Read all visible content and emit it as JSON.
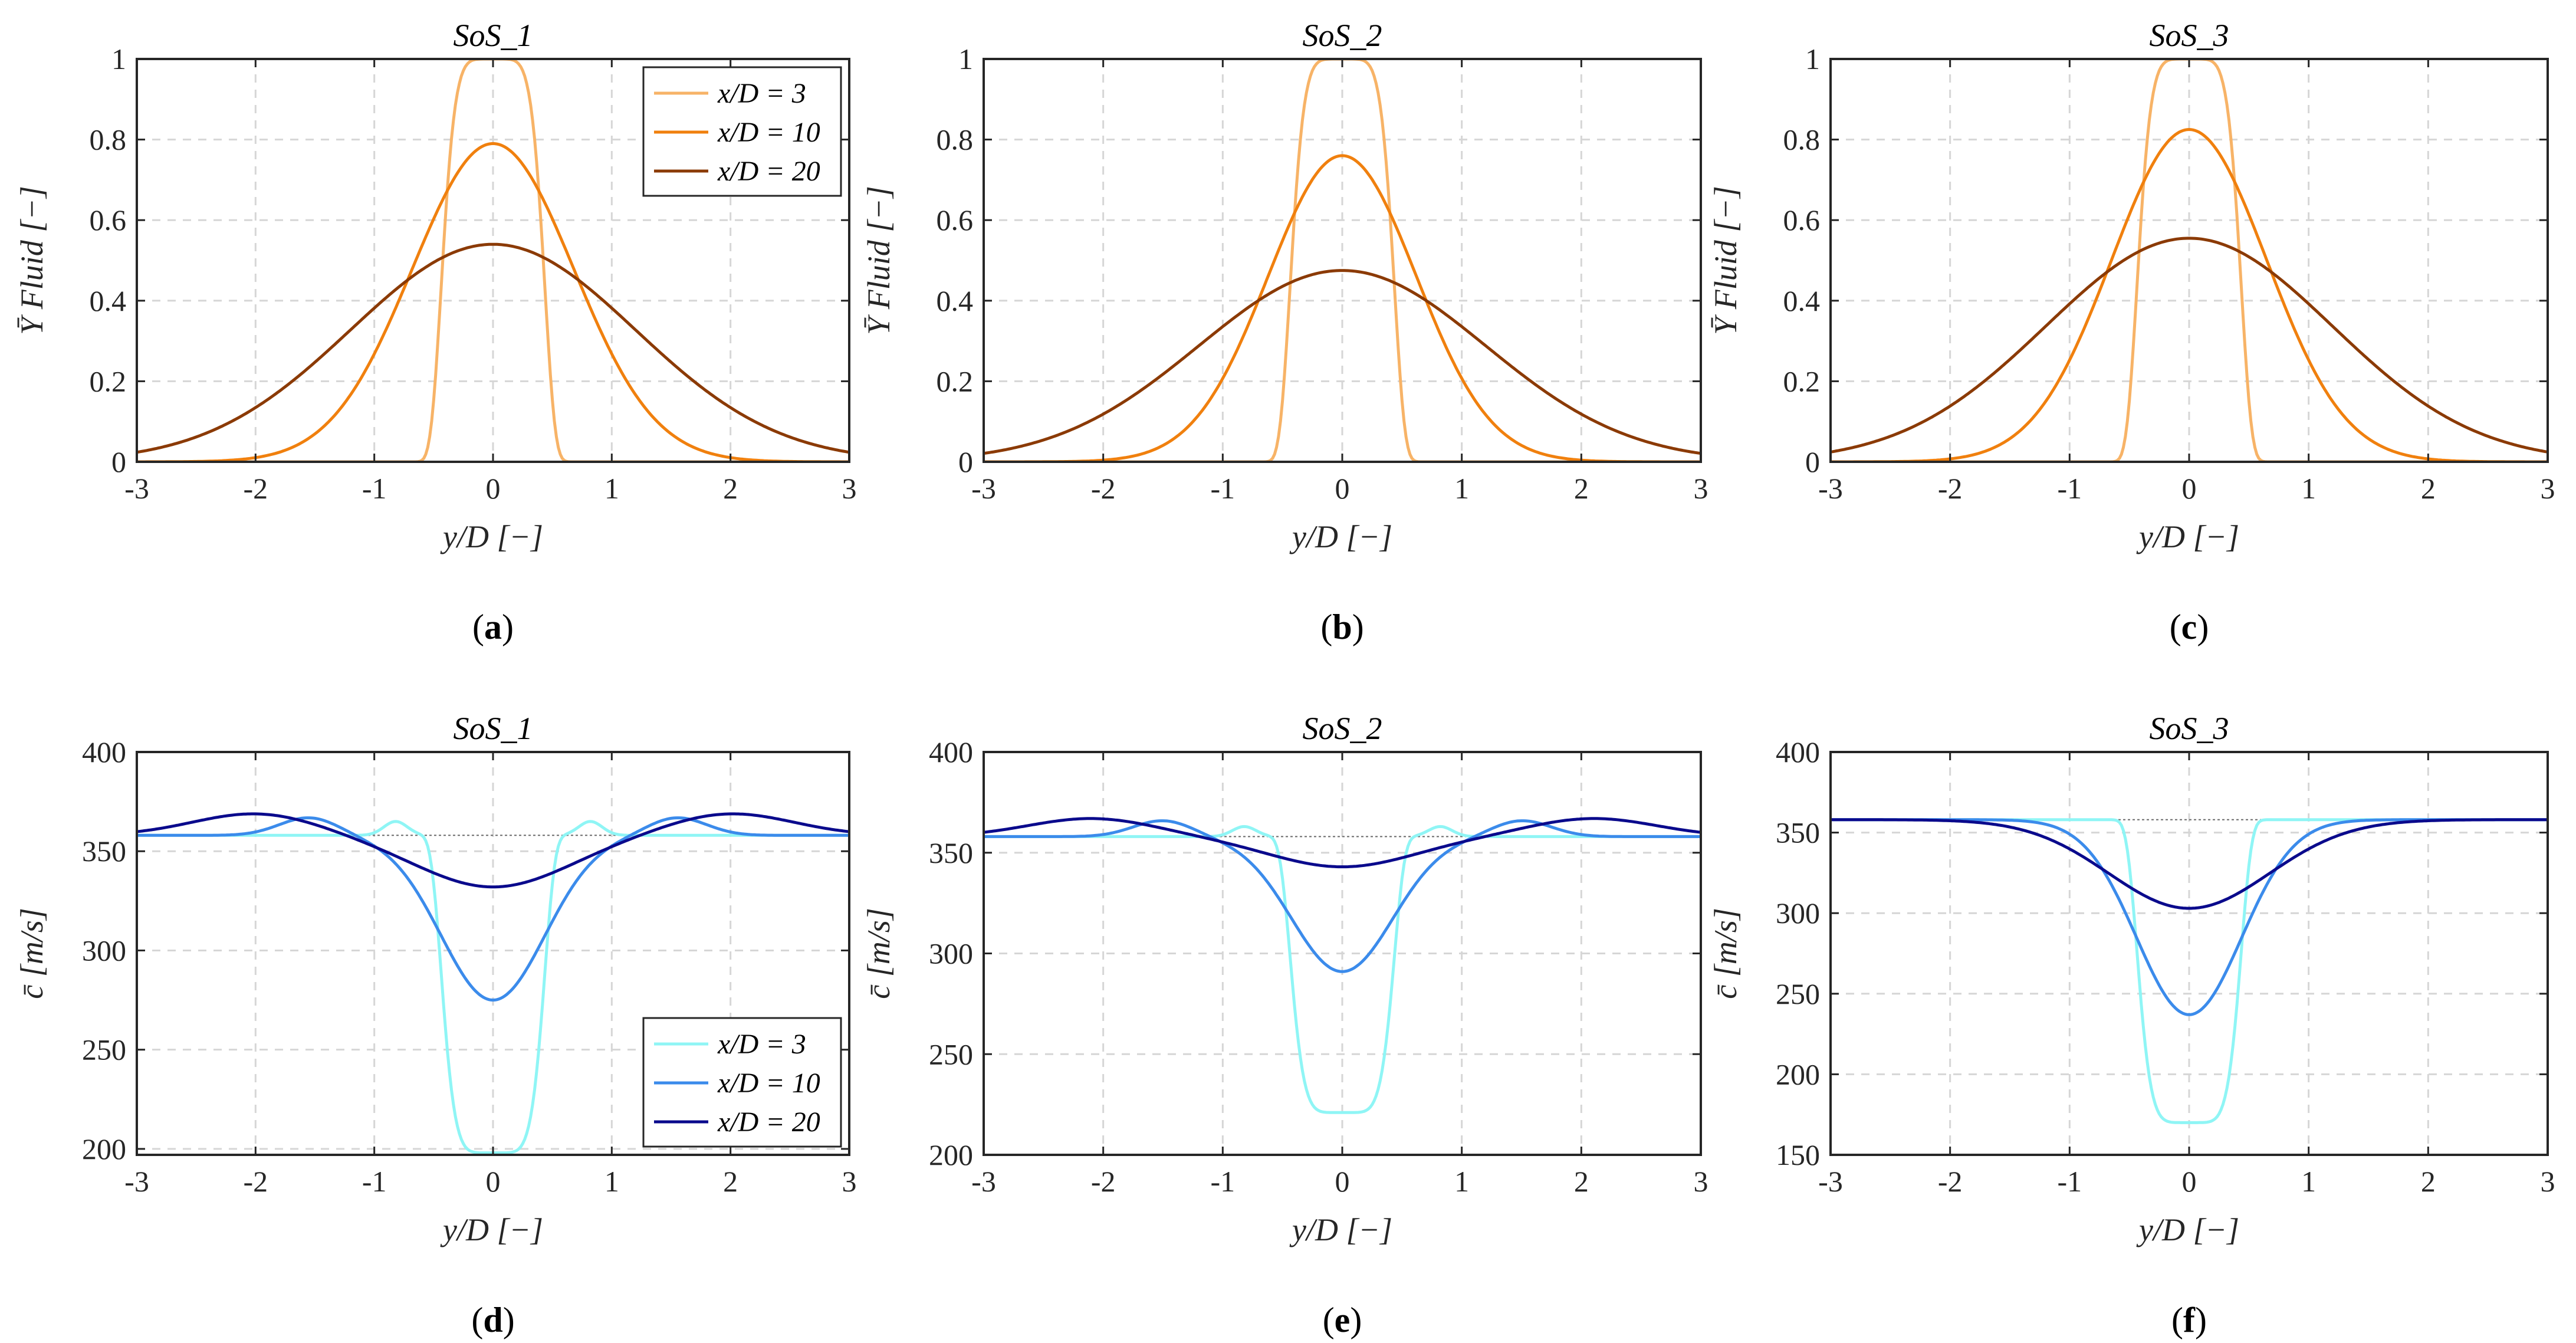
{
  "chart_data": [
    {
      "id": "a",
      "sublabel_letter": "a",
      "title": "SoS_1",
      "type": "line",
      "xlabel": "y/D [−]",
      "ylabel": "Ȳ Fluid [−]",
      "xlim": [
        -3,
        3
      ],
      "ylim": [
        0,
        1
      ],
      "xticks": [
        "-3",
        "-2",
        "-1",
        "0",
        "1",
        "2",
        "3"
      ],
      "yticks": [
        "0",
        "0.2",
        "0.4",
        "0.6",
        "0.8",
        "1"
      ],
      "legend": true,
      "legend_position": "top-right",
      "series": [
        {
          "name": "x/D = 3",
          "color": "#F7B367",
          "kind": "bump",
          "peak": 1.0,
          "width": 0.45,
          "power": 6,
          "base": 0
        },
        {
          "name": "x/D = 10",
          "color": "#F0800E",
          "kind": "gauss",
          "peak": 0.79,
          "sigma": 0.68,
          "base": 0
        },
        {
          "name": "x/D = 20",
          "color": "#8B3A05",
          "kind": "gauss",
          "peak": 0.54,
          "sigma": 1.2,
          "base": 0
        }
      ]
    },
    {
      "id": "b",
      "sublabel_letter": "b",
      "title": "SoS_2",
      "type": "line",
      "xlabel": "y/D [−]",
      "ylabel": "Ȳ Fluid [−]",
      "xlim": [
        -3,
        3
      ],
      "ylim": [
        0,
        1
      ],
      "xticks": [
        "-3",
        "-2",
        "-1",
        "0",
        "1",
        "2",
        "3"
      ],
      "yticks": [
        "0",
        "0.2",
        "0.4",
        "0.6",
        "0.8",
        "1"
      ],
      "legend": false,
      "series": [
        {
          "name": "x/D = 3",
          "color": "#F7B367",
          "kind": "bump",
          "peak": 1.0,
          "width": 0.45,
          "power": 6,
          "base": 0
        },
        {
          "name": "x/D = 10",
          "color": "#F0800E",
          "kind": "gauss",
          "peak": 0.76,
          "sigma": 0.62,
          "base": 0
        },
        {
          "name": "x/D = 20",
          "color": "#8B3A05",
          "kind": "gauss",
          "peak": 0.475,
          "sigma": 1.2,
          "base": 0
        }
      ]
    },
    {
      "id": "c",
      "sublabel_letter": "c",
      "title": "SoS_3",
      "type": "line",
      "xlabel": "y/D [−]",
      "ylabel": "Ȳ Fluid [−]",
      "xlim": [
        -3,
        3
      ],
      "ylim": [
        0,
        1
      ],
      "xticks": [
        "-3",
        "-2",
        "-1",
        "0",
        "1",
        "2",
        "3"
      ],
      "yticks": [
        "0",
        "0.2",
        "0.4",
        "0.6",
        "0.8",
        "1"
      ],
      "legend": false,
      "series": [
        {
          "name": "x/D = 3",
          "color": "#F7B367",
          "kind": "bump",
          "peak": 1.0,
          "width": 0.45,
          "power": 6,
          "base": 0
        },
        {
          "name": "x/D = 10",
          "color": "#F0800E",
          "kind": "gauss",
          "peak": 0.825,
          "sigma": 0.65,
          "base": 0
        },
        {
          "name": "x/D = 20",
          "color": "#8B3A05",
          "kind": "gauss",
          "peak": 0.555,
          "sigma": 1.2,
          "base": 0
        }
      ]
    },
    {
      "id": "d",
      "sublabel_letter": "d",
      "title": "SoS_1",
      "type": "line",
      "xlabel": "y/D [−]",
      "ylabel": "c̄ [m/s]",
      "xlim": [
        -3,
        3
      ],
      "ylim": [
        197,
        400
      ],
      "xticks": [
        "-3",
        "-2",
        "-1",
        "0",
        "1",
        "2",
        "3"
      ],
      "yticks": [
        "200",
        "250",
        "300",
        "350",
        "400"
      ],
      "reference_line": 358,
      "legend": true,
      "legend_position": "bottom-right",
      "series": [
        {
          "name": "x/D = 3",
          "color": "#8FF5F5",
          "kind": "dip",
          "base": 358,
          "min": 198,
          "width": 0.45,
          "power": 6,
          "ov_amp": 7,
          "ov_pos": 0.82,
          "ov_sig": 0.14
        },
        {
          "name": "x/D = 10",
          "color": "#3B8BEB",
          "kind": "dip",
          "base": 358,
          "min": 275,
          "width": 0.62,
          "power": 2,
          "ov_amp": 9,
          "ov_pos": 1.55,
          "ov_sig": 0.35
        },
        {
          "name": "x/D = 20",
          "color": "#0A0A8C",
          "kind": "dip",
          "base": 358,
          "min": 332,
          "width": 0.9,
          "power": 2,
          "ov_amp": 11,
          "ov_pos": 2.0,
          "ov_sig": 0.75
        }
      ]
    },
    {
      "id": "e",
      "sublabel_letter": "e",
      "title": "SoS_2",
      "type": "line",
      "xlabel": "y/D [−]",
      "ylabel": "c̄ [m/s]",
      "xlim": [
        -3,
        3
      ],
      "ylim": [
        200,
        400
      ],
      "xticks": [
        "-3",
        "-2",
        "-1",
        "0",
        "1",
        "2",
        "3"
      ],
      "yticks": [
        "200",
        "250",
        "300",
        "350",
        "400"
      ],
      "reference_line": 358,
      "legend": false,
      "series": [
        {
          "name": "x/D = 3",
          "color": "#8FF5F5",
          "kind": "dip",
          "base": 358,
          "min": 221,
          "width": 0.45,
          "power": 6,
          "ov_amp": 5,
          "ov_pos": 0.82,
          "ov_sig": 0.14
        },
        {
          "name": "x/D = 10",
          "color": "#3B8BEB",
          "kind": "dip",
          "base": 358,
          "min": 291,
          "width": 0.6,
          "power": 2,
          "ov_amp": 8,
          "ov_pos": 1.5,
          "ov_sig": 0.35
        },
        {
          "name": "x/D = 20",
          "color": "#0A0A8C",
          "kind": "dip",
          "base": 358,
          "min": 343,
          "width": 0.85,
          "power": 2,
          "ov_amp": 9,
          "ov_pos": 2.1,
          "ov_sig": 0.75
        }
      ]
    },
    {
      "id": "f",
      "sublabel_letter": "f",
      "title": "SoS_3",
      "type": "line",
      "xlabel": "y/D [−]",
      "ylabel": "c̄ [m/s]",
      "xlim": [
        -3,
        3
      ],
      "ylim": [
        150,
        400
      ],
      "xticks": [
        "-3",
        "-2",
        "-1",
        "0",
        "1",
        "2",
        "3"
      ],
      "yticks": [
        "150",
        "200",
        "250",
        "300",
        "350",
        "400"
      ],
      "reference_line": 358,
      "legend": false,
      "series": [
        {
          "name": "x/D = 3",
          "color": "#8FF5F5",
          "kind": "dip",
          "base": 358,
          "min": 170,
          "width": 0.45,
          "power": 6,
          "ov_amp": 0
        },
        {
          "name": "x/D = 10",
          "color": "#3B8BEB",
          "kind": "dip",
          "base": 358,
          "min": 237,
          "width": 0.62,
          "power": 2,
          "ov_amp": 0
        },
        {
          "name": "x/D = 20",
          "color": "#0A0A8C",
          "kind": "dip",
          "base": 358,
          "min": 303,
          "width": 0.95,
          "power": 2,
          "ov_amp": 0
        }
      ]
    }
  ]
}
